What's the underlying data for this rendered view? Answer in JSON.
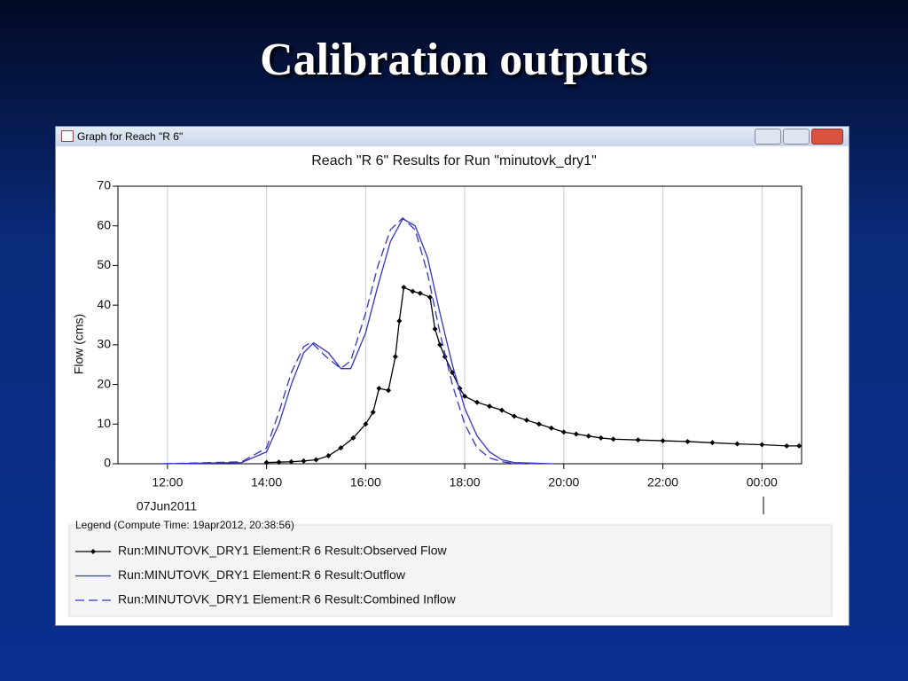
{
  "slide_title": "Calibration outputs",
  "window_title": "Graph for Reach \"R 6\"",
  "chart_data": {
    "type": "line",
    "title": "Reach \"R 6\" Results for Run \"minutovk_dry1\"",
    "y_label": "Flow (cms)",
    "date_label": "07Jun2011",
    "legend_title": "Legend (Compute Time: 19apr2012, 20:38:56)",
    "xlim": [
      11,
      24.8
    ],
    "xticks": [
      {
        "value": 12,
        "label": "12:00"
      },
      {
        "value": 14,
        "label": "14:00"
      },
      {
        "value": 16,
        "label": "16:00"
      },
      {
        "value": 18,
        "label": "18:00"
      },
      {
        "value": 20,
        "label": "20:00"
      },
      {
        "value": 22,
        "label": "22:00"
      },
      {
        "value": 24,
        "label": "00:00"
      }
    ],
    "ylim": [
      0,
      70
    ],
    "yticks": [
      0,
      10,
      20,
      30,
      40,
      50,
      60,
      70
    ],
    "grid": "x",
    "series": [
      {
        "name": "Run:MINUTOVK_DRY1 Element:R 6 Result:Observed Flow",
        "color": "#000000",
        "style": "markers",
        "x": [
          14.0,
          14.25,
          14.5,
          14.75,
          15.0,
          15.25,
          15.5,
          15.75,
          16.0,
          16.15,
          16.27,
          16.46,
          16.6,
          16.68,
          16.77,
          16.95,
          17.1,
          17.3,
          17.4,
          17.5,
          17.6,
          17.75,
          17.9,
          18.0,
          18.25,
          18.5,
          18.75,
          19.0,
          19.25,
          19.5,
          19.75,
          20.0,
          20.25,
          20.5,
          20.75,
          21.0,
          21.5,
          22.0,
          22.5,
          23.0,
          23.5,
          24.0,
          24.5,
          24.75
        ],
        "values": [
          0.3,
          0.4,
          0.5,
          0.7,
          1.0,
          2.0,
          4.0,
          6.5,
          10,
          13,
          19,
          18.5,
          27,
          36,
          44.5,
          43.5,
          43,
          42,
          34,
          30,
          27,
          23,
          19,
          17,
          15.5,
          14.5,
          13.5,
          12,
          11,
          10,
          9,
          8,
          7.5,
          7,
          6.5,
          6.2,
          6,
          5.8,
          5.6,
          5.3,
          5,
          4.8,
          4.5,
          4.5
        ]
      },
      {
        "name": "Run:MINUTOVK_DRY1 Element:R 6 Result:Outflow",
        "color": "#3333cc",
        "style": "solid",
        "x": [
          11.9,
          13.5,
          14.0,
          14.25,
          14.5,
          14.75,
          14.95,
          15.25,
          15.5,
          15.7,
          16.0,
          16.25,
          16.5,
          16.75,
          17.0,
          17.25,
          17.5,
          17.75,
          18.0,
          18.25,
          18.5,
          18.75,
          19.0,
          19.8
        ],
        "values": [
          0,
          0.3,
          3,
          10,
          20,
          28,
          30.5,
          28,
          24,
          24,
          33,
          45,
          56,
          61.8,
          60,
          52,
          38,
          25,
          14,
          7,
          3,
          1,
          0.3,
          0
        ]
      },
      {
        "name": "Run:MINUTOVK_DRY1 Element:R 6 Result:Combined Inflow",
        "color": "#3333cc",
        "style": "dashed",
        "x": [
          11.9,
          13.5,
          14.0,
          14.25,
          14.5,
          14.75,
          14.9,
          15.2,
          15.5,
          15.7,
          16.0,
          16.25,
          16.5,
          16.75,
          17.0,
          17.25,
          17.5,
          17.75,
          18.0,
          18.25,
          18.5,
          18.75,
          19.0,
          19.5
        ],
        "values": [
          0,
          0.5,
          4,
          13,
          23,
          29.5,
          30.7,
          27,
          24,
          26,
          38,
          50,
          59,
          62,
          59,
          48,
          33,
          20,
          10,
          4,
          1.5,
          0.5,
          0.1,
          0
        ]
      }
    ]
  }
}
